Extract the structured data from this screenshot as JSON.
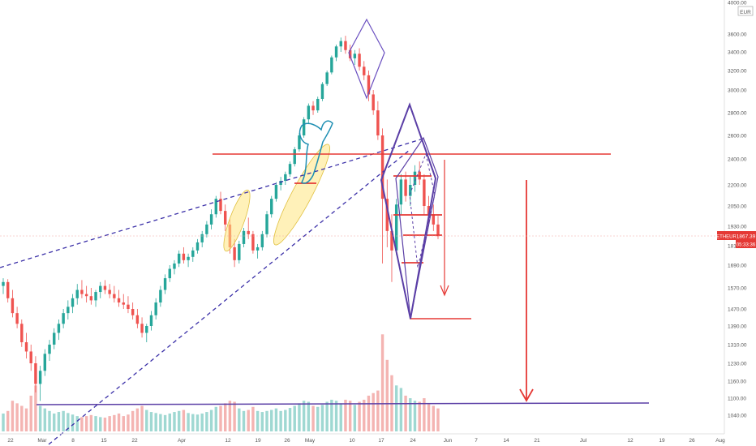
{
  "chart_data": {
    "type": "candlestick",
    "currency": "EUR",
    "symbol": "ETHEUR",
    "last_price": "1867.39",
    "countdown": "05:33:36",
    "y_ticks": [
      "4000.00",
      "3600.00",
      "3400.00",
      "3200.00",
      "3000.00",
      "2800.00",
      "2600.00",
      "2400.00",
      "2200.00",
      "2050.00",
      "1930.00",
      "1810.00",
      "1690.00",
      "1570.00",
      "1470.00",
      "1390.00",
      "1310.00",
      "1230.00",
      "1160.00",
      "1100.00",
      "1040.00"
    ],
    "x_ticks": [
      "22",
      "Mar",
      "8",
      "15",
      "22",
      "Apr",
      "12",
      "19",
      "26",
      "May",
      "10",
      "17",
      "24",
      "Jun",
      "7",
      "14",
      "21",
      "Jul",
      "12",
      "19",
      "26",
      "Aug"
    ],
    "ohlc": [
      [
        1580,
        1620,
        1540,
        1600
      ],
      [
        1600,
        1615,
        1500,
        1520
      ],
      [
        1520,
        1560,
        1430,
        1450
      ],
      [
        1450,
        1480,
        1380,
        1400
      ],
      [
        1400,
        1420,
        1300,
        1320
      ],
      [
        1320,
        1360,
        1250,
        1280
      ],
      [
        1280,
        1310,
        1200,
        1230
      ],
      [
        1230,
        1260,
        1120,
        1150
      ],
      [
        1150,
        1220,
        1090,
        1200
      ],
      [
        1200,
        1290,
        1180,
        1270
      ],
      [
        1270,
        1330,
        1240,
        1310
      ],
      [
        1310,
        1380,
        1290,
        1360
      ],
      [
        1360,
        1420,
        1330,
        1400
      ],
      [
        1400,
        1470,
        1380,
        1450
      ],
      [
        1450,
        1510,
        1420,
        1480
      ],
      [
        1480,
        1540,
        1450,
        1520
      ],
      [
        1520,
        1590,
        1490,
        1560
      ],
      [
        1560,
        1610,
        1520,
        1540
      ],
      [
        1540,
        1580,
        1500,
        1530
      ],
      [
        1530,
        1570,
        1490,
        1510
      ],
      [
        1510,
        1560,
        1480,
        1550
      ],
      [
        1550,
        1600,
        1520,
        1580
      ],
      [
        1580,
        1610,
        1540,
        1560
      ],
      [
        1560,
        1590,
        1520,
        1540
      ],
      [
        1540,
        1580,
        1500,
        1520
      ],
      [
        1520,
        1560,
        1480,
        1500
      ],
      [
        1500,
        1540,
        1470,
        1490
      ],
      [
        1490,
        1530,
        1450,
        1470
      ],
      [
        1470,
        1500,
        1420,
        1440
      ],
      [
        1440,
        1470,
        1380,
        1400
      ],
      [
        1400,
        1430,
        1340,
        1360
      ],
      [
        1360,
        1400,
        1320,
        1390
      ],
      [
        1390,
        1460,
        1370,
        1440
      ],
      [
        1440,
        1520,
        1420,
        1500
      ],
      [
        1500,
        1580,
        1480,
        1560
      ],
      [
        1560,
        1640,
        1540,
        1620
      ],
      [
        1620,
        1690,
        1600,
        1670
      ],
      [
        1670,
        1720,
        1640,
        1700
      ],
      [
        1700,
        1780,
        1680,
        1760
      ],
      [
        1760,
        1800,
        1700,
        1720
      ],
      [
        1720,
        1760,
        1680,
        1740
      ],
      [
        1740,
        1800,
        1710,
        1780
      ],
      [
        1780,
        1850,
        1760,
        1830
      ],
      [
        1830,
        1900,
        1800,
        1880
      ],
      [
        1880,
        1960,
        1860,
        1940
      ],
      [
        1940,
        2030,
        1910,
        2000
      ],
      [
        2000,
        2120,
        1980,
        2100
      ],
      [
        2100,
        2150,
        2000,
        2020
      ],
      [
        2020,
        2060,
        1900,
        1940
      ],
      [
        1940,
        1970,
        1760,
        1800
      ],
      [
        1800,
        1850,
        1680,
        1720
      ],
      [
        1720,
        1840,
        1700,
        1820
      ],
      [
        1820,
        1920,
        1800,
        1900
      ],
      [
        1900,
        1980,
        1850,
        1880
      ],
      [
        1880,
        1900,
        1760,
        1780
      ],
      [
        1780,
        1820,
        1730,
        1800
      ],
      [
        1800,
        1900,
        1780,
        1880
      ],
      [
        1880,
        2020,
        1860,
        2000
      ],
      [
        2000,
        2120,
        1980,
        2100
      ],
      [
        2100,
        2220,
        2080,
        2200
      ],
      [
        2200,
        2260,
        2160,
        2230
      ],
      [
        2230,
        2300,
        2200,
        2280
      ],
      [
        2280,
        2380,
        2260,
        2360
      ],
      [
        2360,
        2500,
        2340,
        2480
      ],
      [
        2480,
        2620,
        2460,
        2600
      ],
      [
        2600,
        2760,
        2580,
        2740
      ],
      [
        2740,
        2880,
        2700,
        2860
      ],
      [
        2860,
        2900,
        2780,
        2820
      ],
      [
        2820,
        2940,
        2800,
        2920
      ],
      [
        2920,
        3080,
        2900,
        3060
      ],
      [
        3060,
        3200,
        3040,
        3180
      ],
      [
        3180,
        3360,
        3160,
        3340
      ],
      [
        3340,
        3480,
        3300,
        3460
      ],
      [
        3460,
        3560,
        3400,
        3520
      ],
      [
        3520,
        3580,
        3380,
        3420
      ],
      [
        3420,
        3480,
        3300,
        3330
      ],
      [
        3330,
        3420,
        3260,
        3380
      ],
      [
        3380,
        3440,
        3200,
        3240
      ],
      [
        3240,
        3300,
        3100,
        3150
      ],
      [
        3150,
        3200,
        2900,
        2960
      ],
      [
        2960,
        3000,
        2780,
        2820
      ],
      [
        2820,
        2900,
        2560,
        2600
      ],
      [
        2600,
        2660,
        1700,
        2100
      ],
      [
        2100,
        2240,
        1800,
        1900
      ],
      [
        1900,
        2000,
        1600,
        1780
      ],
      [
        1780,
        2100,
        1750,
        2060
      ],
      [
        2060,
        2280,
        2000,
        2240
      ],
      [
        2240,
        2300,
        2080,
        2120
      ],
      [
        2120,
        2260,
        2050,
        2200
      ],
      [
        2200,
        2350,
        2150,
        2300
      ],
      [
        2300,
        2380,
        2200,
        2240
      ],
      [
        2240,
        2280,
        2000,
        2050
      ],
      [
        2050,
        2120,
        1930,
        2000
      ],
      [
        2000,
        2060,
        1900,
        1940
      ],
      [
        1940,
        1990,
        1850,
        1867.39
      ]
    ],
    "volume": [
      0.35,
      0.4,
      0.6,
      0.55,
      0.5,
      0.45,
      0.7,
      0.9,
      0.5,
      0.45,
      0.4,
      0.35,
      0.38,
      0.4,
      0.36,
      0.33,
      0.3,
      0.28,
      0.3,
      0.32,
      0.3,
      0.28,
      0.27,
      0.3,
      0.32,
      0.35,
      0.3,
      0.33,
      0.4,
      0.45,
      0.5,
      0.42,
      0.38,
      0.36,
      0.34,
      0.32,
      0.35,
      0.38,
      0.4,
      0.42,
      0.36,
      0.34,
      0.33,
      0.35,
      0.38,
      0.42,
      0.48,
      0.5,
      0.55,
      0.6,
      0.58,
      0.45,
      0.4,
      0.42,
      0.48,
      0.4,
      0.38,
      0.4,
      0.42,
      0.45,
      0.4,
      0.42,
      0.46,
      0.5,
      0.55,
      0.6,
      0.58,
      0.5,
      0.48,
      0.52,
      0.58,
      0.62,
      0.6,
      0.55,
      0.62,
      0.6,
      0.52,
      0.58,
      0.62,
      0.7,
      0.75,
      0.8,
      1.9,
      1.4,
      1.1,
      0.9,
      0.85,
      0.7,
      0.65,
      0.6,
      0.58,
      0.65,
      0.55,
      0.5,
      0.45
    ],
    "series": [
      {
        "name": "ETHEUR",
        "values": [
          1867.39
        ]
      }
    ],
    "overlays": {
      "resistance_level": 2420,
      "support_level": 1080,
      "projected_target": 1080
    },
    "colors": {
      "up": "#26a69a",
      "down": "#ef5350",
      "purple": "#5b3fa6",
      "red_line": "#e53935",
      "highlight": "#ffe680",
      "cyan": "#1f8fb3"
    }
  }
}
